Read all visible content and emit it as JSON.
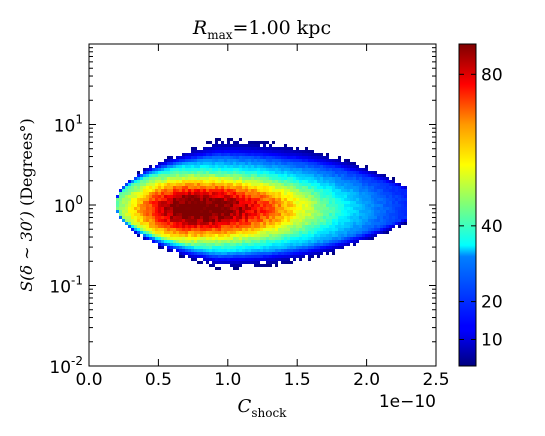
{
  "chart_data": {
    "type": "heatmap",
    "title": {
      "var": "R",
      "sub": "max",
      "rest": "=1.00 kpc"
    },
    "xlabel": {
      "var": "C",
      "sub": "shock"
    },
    "ylabel": {
      "prefix": "S(δ ∼ 30′) ",
      "unit": "(Degrees°)"
    },
    "x_offset_label": "1e−10",
    "xlim": [
      0.0,
      2.5
    ],
    "ylim_log10": [
      -2,
      2
    ],
    "ylog": true,
    "xticks": [
      "0.0",
      "0.5",
      "1.0",
      "1.5",
      "2.0",
      "2.5"
    ],
    "yticks": [
      {
        "base": "10",
        "exp": "-2"
      },
      {
        "base": "10",
        "exp": "-1"
      },
      {
        "base": "10",
        "exp": "0"
      },
      {
        "base": "10",
        "exp": "1"
      }
    ],
    "colorbar": {
      "min": 3,
      "max": 88,
      "ticks": [
        "10",
        "20",
        "40",
        "80"
      ],
      "colormap": "jet"
    },
    "density": {
      "description_units": "x in 1e-10, y in log10(degrees)",
      "peak_x": 0.75,
      "peak_y_log10": -0.05,
      "peak_value": 88,
      "x_extent": [
        0.2,
        2.28
      ],
      "y_extent_log10": [
        -0.8,
        0.82
      ]
    }
  }
}
